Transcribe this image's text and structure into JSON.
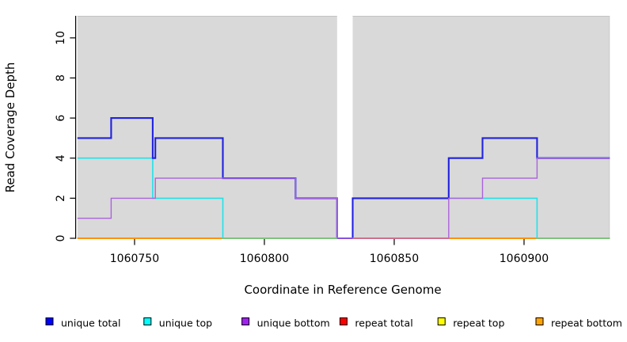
{
  "chart_data": {
    "type": "line",
    "subtype": "step-coverage-plot",
    "title": "",
    "xlabel": "Coordinate in Reference Genome",
    "ylabel": "Read Coverage Depth",
    "xlim": [
      1060728,
      1060933
    ],
    "ylim": [
      0,
      11.1
    ],
    "x_ticks": [
      1060750,
      1060800,
      1060850,
      1060900
    ],
    "y_ticks": [
      0,
      2,
      4,
      6,
      8,
      10
    ],
    "grid": "off",
    "legend_position": "bottom",
    "plot_background": "#d9d9d9",
    "no_data_band": {
      "from": 1060828,
      "to": 1060834,
      "color": "#ffffff"
    },
    "series": [
      {
        "name": "repeat total",
        "legend_color": "#ff0000",
        "line_color": "#dd2020",
        "width": 1.5,
        "steps": [
          [
            1060728,
            0
          ]
        ]
      },
      {
        "name": "repeat top",
        "legend_color": "#ffff00",
        "line_color": "#f0e800",
        "width": 1.5,
        "steps": [
          [
            1060728,
            0
          ]
        ]
      },
      {
        "name": "repeat bottom",
        "legend_color": "#ffa500",
        "line_color": "#ff8c00",
        "width": 1.8,
        "steps": [
          [
            1060728,
            0
          ]
        ]
      },
      {
        "name": "unique top",
        "legend_color": "#00ffff",
        "line_color": "#21e2e8",
        "width": 1.6,
        "steps": [
          [
            1060728,
            4
          ],
          [
            1060757,
            2
          ],
          [
            1060784,
            0
          ],
          [
            1060834,
            2
          ],
          [
            1060905,
            0
          ]
        ]
      },
      {
        "name": "unique total",
        "legend_color": "#0000ff",
        "line_color": "#2121e0",
        "width": 2.1,
        "steps": [
          [
            1060728,
            5
          ],
          [
            1060741,
            6
          ],
          [
            1060757,
            4
          ],
          [
            1060758,
            5
          ],
          [
            1060784,
            3
          ],
          [
            1060812,
            2
          ],
          [
            1060828,
            0
          ],
          [
            1060834,
            2
          ],
          [
            1060871,
            4
          ],
          [
            1060884,
            5
          ],
          [
            1060905,
            4
          ]
        ]
      },
      {
        "name": "unique bottom",
        "legend_color": "#a020f0",
        "line_color": "#ab63dd",
        "width": 1.4,
        "steps": [
          [
            1060728,
            1
          ],
          [
            1060741,
            2
          ],
          [
            1060758,
            3
          ],
          [
            1060812,
            2
          ],
          [
            1060828,
            0
          ],
          [
            1060871,
            2
          ],
          [
            1060884,
            3
          ],
          [
            1060905,
            4
          ]
        ]
      }
    ],
    "baseline_overlap_segments": [
      {
        "from": 1060784,
        "to": 1060828,
        "color": "#7cc47c"
      },
      {
        "from": 1060834,
        "to": 1060871,
        "color": "#cd6e8f"
      },
      {
        "from": 1060905,
        "to": 1060933,
        "color": "#7cc47c"
      }
    ],
    "legend": [
      {
        "label": "unique total",
        "color": "#0000ff"
      },
      {
        "label": "unique top",
        "color": "#00ffff"
      },
      {
        "label": "unique bottom",
        "color": "#a020f0"
      },
      {
        "label": "repeat total",
        "color": "#ff0000"
      },
      {
        "label": "repeat top",
        "color": "#ffff00"
      },
      {
        "label": "repeat bottom",
        "color": "#ffa500"
      }
    ]
  }
}
